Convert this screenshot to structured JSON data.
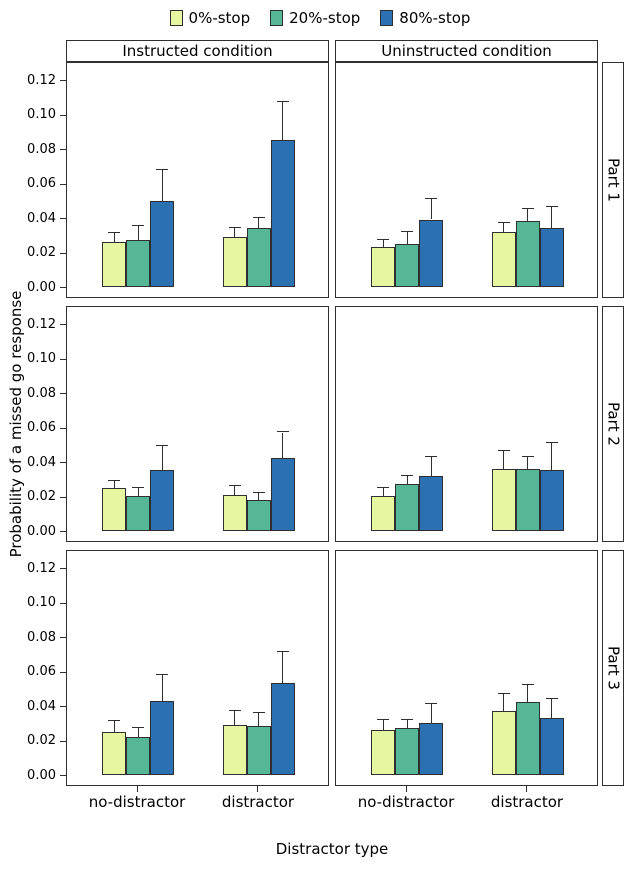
{
  "chart_data": {
    "type": "bar",
    "title": "",
    "xlabel": "Distractor type",
    "ylabel": "Probability of a missed go response",
    "legend_position": "top",
    "grid": false,
    "ylim": [
      0,
      0.12
    ],
    "yticks": [
      0,
      0.02,
      0.04,
      0.06,
      0.08,
      0.1,
      0.12
    ],
    "categories": [
      "no-distractor",
      "distractor"
    ],
    "series": [
      {
        "name": "0%-stop",
        "color": "#E7F6A1"
      },
      {
        "name": "20%-stop",
        "color": "#55B795"
      },
      {
        "name": "80%-stop",
        "color": "#2A70B2"
      }
    ],
    "facet_cols": [
      "Instructed condition",
      "Uninstructed condition"
    ],
    "facet_rows": [
      "Part 1",
      "Part 2",
      "Part 3"
    ],
    "error_bars": "upper whisker with cap",
    "panels": [
      {
        "facet_col": "Instructed condition",
        "facet_row": "Part 1",
        "bars": [
          {
            "category": "no-distractor",
            "values": [
              0.026,
              0.027,
              0.05
            ],
            "upper": [
              0.031,
              0.035,
              0.068
            ]
          },
          {
            "category": "distractor",
            "values": [
              0.029,
              0.034,
              0.085
            ],
            "upper": [
              0.034,
              0.04,
              0.107
            ]
          }
        ]
      },
      {
        "facet_col": "Uninstructed condition",
        "facet_row": "Part 1",
        "bars": [
          {
            "category": "no-distractor",
            "values": [
              0.023,
              0.025,
              0.039
            ],
            "upper": [
              0.027,
              0.032,
              0.051
            ]
          },
          {
            "category": "distractor",
            "values": [
              0.032,
              0.038,
              0.034
            ],
            "upper": [
              0.037,
              0.045,
              0.046
            ]
          }
        ]
      },
      {
        "facet_col": "Instructed condition",
        "facet_row": "Part 2",
        "bars": [
          {
            "category": "no-distractor",
            "values": [
              0.025,
              0.02,
              0.035
            ],
            "upper": [
              0.029,
              0.025,
              0.049
            ]
          },
          {
            "category": "distractor",
            "values": [
              0.021,
              0.018,
              0.042
            ],
            "upper": [
              0.026,
              0.022,
              0.057
            ]
          }
        ]
      },
      {
        "facet_col": "Uninstructed condition",
        "facet_row": "Part 2",
        "bars": [
          {
            "category": "no-distractor",
            "values": [
              0.02,
              0.027,
              0.032
            ],
            "upper": [
              0.025,
              0.032,
              0.043
            ]
          },
          {
            "category": "distractor",
            "values": [
              0.036,
              0.036,
              0.035
            ],
            "upper": [
              0.046,
              0.043,
              0.051
            ]
          }
        ]
      },
      {
        "facet_col": "Instructed condition",
        "facet_row": "Part 3",
        "bars": [
          {
            "category": "no-distractor",
            "values": [
              0.025,
              0.022,
              0.043
            ],
            "upper": [
              0.031,
              0.027,
              0.058
            ]
          },
          {
            "category": "distractor",
            "values": [
              0.029,
              0.028,
              0.053
            ],
            "upper": [
              0.037,
              0.036,
              0.071
            ]
          }
        ]
      },
      {
        "facet_col": "Uninstructed condition",
        "facet_row": "Part 3",
        "bars": [
          {
            "category": "no-distractor",
            "values": [
              0.026,
              0.027,
              0.03
            ],
            "upper": [
              0.032,
              0.032,
              0.041
            ]
          },
          {
            "category": "distractor",
            "values": [
              0.037,
              0.042,
              0.033
            ],
            "upper": [
              0.047,
              0.052,
              0.044
            ]
          }
        ]
      }
    ]
  }
}
